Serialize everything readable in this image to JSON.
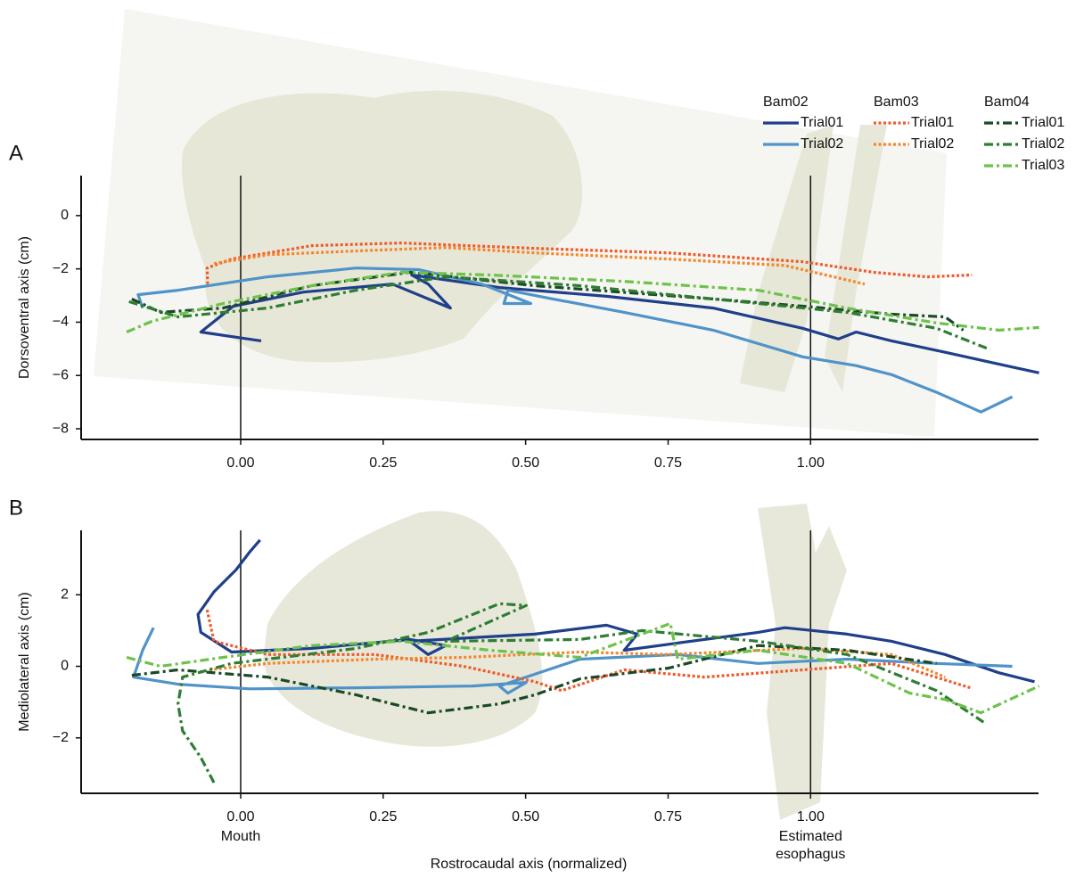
{
  "chart_data": [
    {
      "type": "line",
      "panel_label": "A",
      "ylabel": "Dorsoventral axis (cm)",
      "xlim": [
        -0.28,
        1.4
      ],
      "ylim": [
        -8.4,
        1.5
      ],
      "xticks": [
        {
          "value": 0,
          "label": "0.00"
        },
        {
          "value": 0.25,
          "label": "0.25"
        },
        {
          "value": 0.5,
          "label": "0.50"
        },
        {
          "value": 0.75,
          "label": "0.75"
        },
        {
          "value": 1,
          "label": "1.00"
        }
      ],
      "yticks": [
        0,
        {
          "value": -2,
          "label": "−2"
        },
        {
          "value": -4,
          "label": "−4"
        },
        {
          "value": -6,
          "label": "−6"
        },
        {
          "value": -8,
          "label": "−8"
        }
      ],
      "vlines": [
        0,
        1
      ],
      "groups": [
        {
          "name": "Bam02",
          "series": [
            {
              "name": "Trial01",
              "color": "#1f3f8a",
              "style": "solid",
              "x": [
                0.036,
                -0.07,
                -0.013,
                0.11,
                0.266,
                0.368,
                0.329,
                0.3,
                0.454,
                0.642,
                0.829,
                0.986,
                1.049,
                1.08,
                1.142,
                1.236,
                1.33,
                1.401
              ],
              "y": [
                -4.7,
                -4.37,
                -3.4,
                -2.87,
                -2.57,
                -3.47,
                -2.57,
                -2.23,
                -2.7,
                -3.03,
                -3.47,
                -4.23,
                -4.63,
                -4.37,
                -4.7,
                -5.13,
                -5.57,
                -5.9
              ]
            },
            {
              "name": "Trial02",
              "color": "#4f93c9",
              "style": "solid",
              "x": [
                -0.172,
                -0.18,
                -0.11,
                0.047,
                0.203,
                0.313,
                0.423,
                0.509,
                0.462,
                0.469,
                0.548,
                0.673,
                0.829,
                0.986,
                1.08,
                1.142,
                1.221,
                1.299,
                1.354
              ],
              "y": [
                -3.47,
                -2.97,
                -2.8,
                -2.3,
                -1.97,
                -2.03,
                -2.57,
                -3.3,
                -3.3,
                -2.8,
                -3.13,
                -3.63,
                -4.3,
                -5.3,
                -5.63,
                -5.97,
                -6.63,
                -7.37,
                -6.8
              ]
            }
          ]
        },
        {
          "name": "Bam03",
          "series": [
            {
              "name": "Trial01",
              "color": "#ef5a2a",
              "style": "dotted",
              "x": [
                -0.058,
                -0.059,
                -0.016,
                0.125,
                0.282,
                0.516,
                0.751,
                0.986,
                1.111,
                1.205,
                1.283
              ],
              "y": [
                -2.57,
                -1.97,
                -1.63,
                -1.13,
                -1.03,
                -1.23,
                -1.4,
                -1.73,
                -2.13,
                -2.3,
                -2.23
              ]
            },
            {
              "name": "Trial02",
              "color": "#f4862a",
              "style": "dotted",
              "x": [
                -0.047,
                0.047,
                0.235,
                0.36,
                0.516,
                0.751,
                0.955,
                1.095
              ],
              "y": [
                -1.8,
                -1.47,
                -1.3,
                -1.2,
                -1.4,
                -1.63,
                -1.87,
                -2.57
              ]
            }
          ]
        },
        {
          "name": "Bam04",
          "series": [
            {
              "name": "Trial01",
              "color": "#1a4a25",
              "style": "dashdot",
              "x": [
                -0.191,
                -0.141,
                -0.031,
                0.125,
                0.297,
                0.516,
                0.829,
                0.986,
                1.142,
                1.236,
                1.268
              ],
              "y": [
                -3.13,
                -3.63,
                -3.47,
                -2.63,
                -2.13,
                -2.63,
                -3.13,
                -3.4,
                -3.7,
                -3.8,
                -4.3
              ]
            },
            {
              "name": "Trial02",
              "color": "#2e7d32",
              "style": "dashdot",
              "x": [
                -0.196,
                -0.11,
                0.047,
                0.203,
                0.36,
                0.595,
                0.829,
                1.064,
                1.221,
                1.315
              ],
              "y": [
                -3.23,
                -3.8,
                -3.47,
                -2.8,
                -2.3,
                -2.63,
                -3.13,
                -3.63,
                -4.23,
                -5.03
              ]
            },
            {
              "name": "Trial03",
              "color": "#6cc24a",
              "style": "dashdot",
              "x": [
                -0.2,
                -0.156,
                -0.031,
                0.125,
                0.282,
                0.438,
                0.673,
                0.908,
                1.064,
                1.221,
                1.33,
                1.401
              ],
              "y": [
                -4.37,
                -3.97,
                -3.3,
                -2.63,
                -2.13,
                -2.23,
                -2.47,
                -2.8,
                -3.47,
                -4.03,
                -4.3,
                -4.2
              ]
            }
          ]
        }
      ]
    },
    {
      "type": "line",
      "panel_label": "B",
      "ylabel": "Mediolateral axis (cm)",
      "xlabel": "Rostrocaudal axis (normalized)",
      "xlim": [
        -0.28,
        1.4
      ],
      "ylim": [
        -3.55,
        3.8
      ],
      "xticks": [
        {
          "value": 0,
          "label": "0.00"
        },
        {
          "value": 0.25,
          "label": "0.25"
        },
        {
          "value": 0.5,
          "label": "0.50"
        },
        {
          "value": 0.75,
          "label": "0.75"
        },
        {
          "value": 1,
          "label": "1.00"
        }
      ],
      "yticks": [
        2,
        0,
        {
          "value": -2,
          "label": "−2"
        }
      ],
      "vlines": [
        0,
        1
      ],
      "annotations": [
        {
          "x": 0,
          "text": [
            "Mouth"
          ]
        },
        {
          "x": 1,
          "text": [
            "Estimated",
            "esophagus"
          ]
        }
      ],
      "series": [
        {
          "color": "#1f3f8a",
          "style": "solid",
          "x": [
            0.034,
            0.016,
            -0.008,
            -0.047,
            -0.075,
            -0.07,
            -0.016,
            0.125,
            0.297,
            0.36,
            0.329,
            0.297,
            0.516,
            0.642,
            0.696,
            0.673,
            0.767,
            0.908,
            0.955,
            1.064,
            1.142,
            1.236,
            1.33,
            1.393
          ],
          "y": [
            3.53,
            3.2,
            2.7,
            2.08,
            1.45,
            0.95,
            0.4,
            0.5,
            0.75,
            0.58,
            0.33,
            0.7,
            0.9,
            1.15,
            0.9,
            0.45,
            0.65,
            0.95,
            1.08,
            0.9,
            0.7,
            0.33,
            -0.18,
            -0.43
          ]
        },
        {
          "color": "#4f93c9",
          "style": "solid",
          "x": [
            -0.153,
            -0.172,
            -0.188,
            -0.11,
            0.016,
            0.203,
            0.407,
            0.501,
            0.469,
            0.454,
            0.595,
            0.767,
            0.908,
            1.064,
            1.221,
            1.354
          ],
          "y": [
            1.08,
            0.45,
            -0.3,
            -0.5,
            -0.63,
            -0.6,
            -0.55,
            -0.45,
            -0.75,
            -0.55,
            0.2,
            0.33,
            0.08,
            0.2,
            0.08,
            0
          ]
        },
        {
          "color": "#ef5a2a",
          "style": "dotted",
          "x": [
            -0.059,
            -0.047,
            0.047,
            0.235,
            0.391,
            0.516,
            0.563,
            0.673,
            0.814,
            0.986,
            1.142,
            1.28
          ],
          "y": [
            1.58,
            0.7,
            0.33,
            0.33,
            0,
            -0.43,
            -0.68,
            -0.1,
            -0.3,
            -0.1,
            0.08,
            -0.6
          ]
        },
        {
          "color": "#f4862a",
          "style": "dotted",
          "x": [
            -0.055,
            0.047,
            0.235,
            0.391,
            0.595,
            0.751,
            0.986,
            1.142,
            1.236
          ],
          "y": [
            -0.1,
            0.08,
            0.2,
            0.25,
            0.4,
            0.33,
            0.5,
            0.33,
            -0.3
          ]
        },
        {
          "color": "#1a4a25",
          "style": "dashdot",
          "x": [
            -0.191,
            -0.11,
            0.047,
            0.203,
            0.329,
            0.454,
            0.516,
            0.595,
            0.751,
            0.908,
            1.064,
            1.221
          ],
          "y": [
            -0.25,
            -0.1,
            -0.3,
            -0.8,
            -1.3,
            -1.05,
            -0.8,
            -0.35,
            -0.05,
            0.58,
            0.45,
            0.08
          ]
        },
        {
          "color": "#2e7d32",
          "style": "dashdot",
          "x": [
            -0.047,
            -0.07,
            -0.102,
            -0.11,
            -0.102,
            -0.016,
            0.203,
            0.329,
            0.454,
            0.501,
            0.36,
            0.595,
            0.704,
            0.908,
            1.064,
            1.221,
            1.307
          ],
          "y": [
            -3.25,
            -2.55,
            -1.8,
            -1.05,
            -0.3,
            0.08,
            0.5,
            0.95,
            1.75,
            1.7,
            0.7,
            0.75,
            1,
            0.7,
            0.33,
            -0.68,
            -1.6
          ]
        },
        {
          "color": "#6cc24a",
          "style": "dashdot",
          "x": [
            -0.2,
            -0.141,
            -0.031,
            0.125,
            0.282,
            0.438,
            0.595,
            0.754,
            0.767,
            0.908,
            1.064,
            1.174,
            1.236,
            1.299,
            1.401
          ],
          "y": [
            0.25,
            0,
            0.25,
            0.58,
            0.7,
            0.45,
            0.25,
            1.2,
            0.2,
            0.45,
            0.08,
            -0.75,
            -0.93,
            -1.3,
            -0.55
          ]
        }
      ]
    }
  ]
}
